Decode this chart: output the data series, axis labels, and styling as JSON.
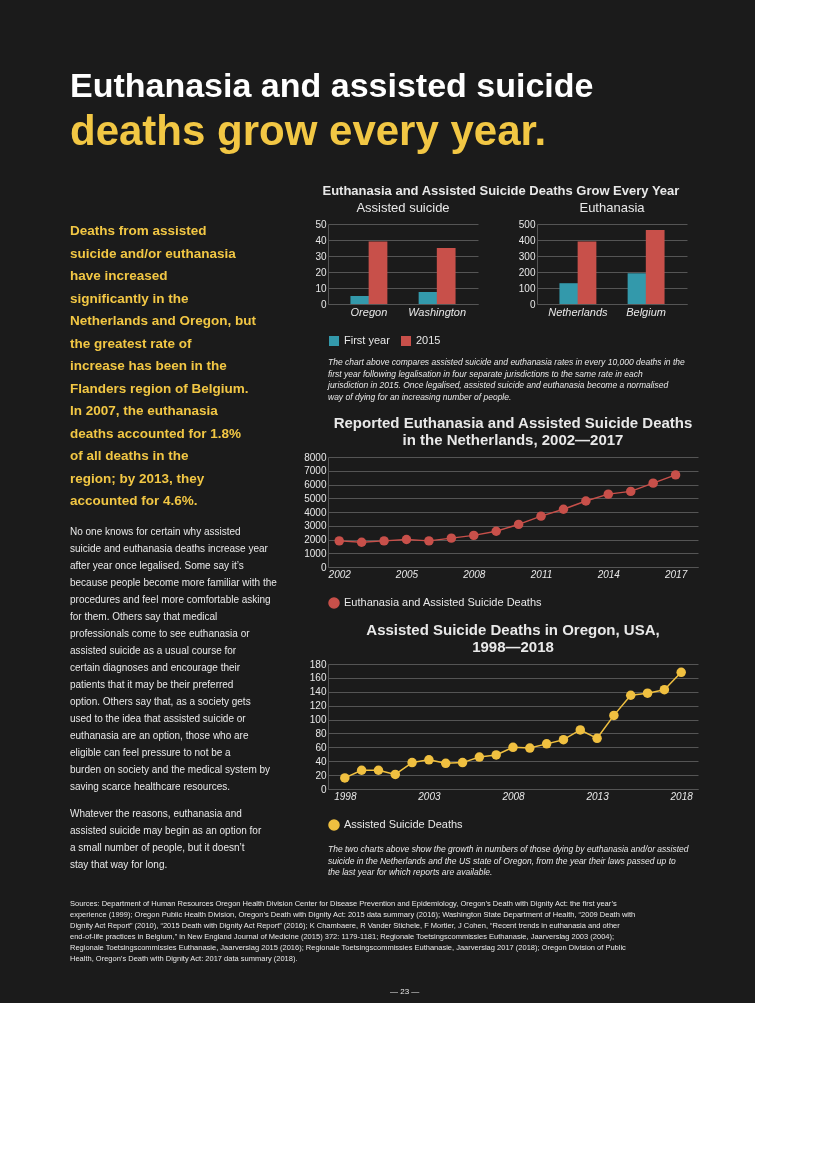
{
  "chart_data": [
    {
      "type": "other",
      "title": "Euthanasia and assisted suicide",
      "subtitle": "deaths grow every year.",
      "annotations": [
        "Deaths from assisted suicide and/or euthanasia have increased significantly in the Netherlands and Oregon, but the greatest rate of increase has been in the Flanders region of Belgium. In 2007, the euthanasia deaths accounted for 1.8% of all deaths in the region; by 2013, they accounted for 4.6%.",
        "No one knows for certain why assisted suicide and euthanasia deaths increase year after year once legalised. Some say it’s because people become more familiar with the procedures and feel more comfortable asking for them. Others say that medical professionals come to see euthanasia or assisted suicide as a usual course for certain diagnoses and encourage their patients that it may be their preferred option. Others say that, as a society gets used to the idea that assisted suicide or euthanasia are an option, those who are eligible can feel pressure to not be a burden on society and the medical system by saving scarce healthcare resources.",
        "Whatever the reasons, euthanasia and assisted suicide may begin as an option for a small number of people, but it doesn’t stay that way for long.",
        "Sources: Department of Human Resources Oregon Health Division Center for Disease Prevention and Epidemiology, Oregon’s Death with Dignity Act: the first year’s experience (1999); Oregon Public Health Division, Oregon’s Death with Dignity Act: 2015 data summary (2016); Washington State Department of Health, “2009 Death with Dignity Act Report” (2010), “2015 Death with Dignity Act Report” (2016); K Chambaere, R Vander Stichele, F Mortier, J Cohen, “Recent trends in euthanasia and other end-of-life practices in Belgium,” in New England Journal of Medicine (2015) 372: 1179-1181; Regionale Toetsingscommissies Euthanasie, Jaarverslag 2003 (2004); Regionale Toetsingscommissies Euthanasie, Jaarverslag 2015 (2016); Regionale Toetsingscommissies Euthanasie, Jaarverslag 2017 (2018); Oregon Division of Public Health, Oregon’s Death with Dignity Act: 2017 data summary (2018).",
        "— 23 —"
      ]
    },
    {
      "type": "bar",
      "title": "Euthanasia and Assisted Suicide Deaths Grow Every Year",
      "subtitle": "Assisted suicide",
      "categories": [
        "Oregon",
        "Washington"
      ],
      "series": [
        {
          "name": "First year",
          "color": "#3399ab",
          "values": [
            5,
            7.5
          ]
        },
        {
          "name": "2015",
          "color": "#c8504a",
          "values": [
            39,
            35
          ]
        }
      ],
      "ylim": [
        0,
        50
      ],
      "yticks": [
        0,
        10,
        20,
        30,
        40,
        50
      ],
      "grid": "y",
      "legend": "bottom"
    },
    {
      "type": "bar",
      "subtitle": "Euthanasia",
      "categories": [
        "Netherlands",
        "Belgium"
      ],
      "series": [
        {
          "name": "First year",
          "color": "#3399ab",
          "values": [
            130,
            192
          ]
        },
        {
          "name": "2015",
          "color": "#c8504a",
          "values": [
            390,
            462
          ]
        }
      ],
      "ylim": [
        0,
        500
      ],
      "yticks": [
        0,
        100,
        200,
        300,
        400,
        500
      ],
      "grid": "y",
      "legend": "bottom",
      "annotations": [
        "The chart above compares assisted suicide and euthanasia rates in every 10,000 deaths in the first year following legalisation in four separate jurisdictions to the same rate in each jurisdiction in 2015. Once legalised, assisted suicide and euthanasia become a normalised way of dying for an increasing number of people."
      ]
    },
    {
      "type": "line",
      "title": "Reported Euthanasia and Assisted Suicide Deaths in the Netherlands, 2002—2017",
      "x": [
        2002,
        2003,
        2004,
        2005,
        2006,
        2007,
        2008,
        2009,
        2010,
        2011,
        2012,
        2013,
        2014,
        2015,
        2016,
        2017
      ],
      "series": [
        {
          "name": "Euthanasia and Assisted Suicide Deaths",
          "color": "#c8504a",
          "values": [
            1900,
            1800,
            1900,
            2000,
            1900,
            2100,
            2300,
            2600,
            3100,
            3700,
            4200,
            4800,
            5300,
            5500,
            6100,
            6700
          ]
        }
      ],
      "xlim": [
        2001.5,
        2018
      ],
      "xticks": [
        2002,
        2005,
        2008,
        2011,
        2014,
        2017
      ],
      "ylim": [
        0,
        8000
      ],
      "yticks": [
        0,
        1000,
        2000,
        3000,
        4000,
        5000,
        6000,
        7000,
        8000
      ],
      "grid": "y",
      "legend": "bottom",
      "marker": "circle",
      "line_style": "solid"
    },
    {
      "type": "line",
      "title": "Assisted Suicide Deaths in Oregon, USA, 1998—2018",
      "x": [
        1998,
        1999,
        2000,
        2001,
        2002,
        2003,
        2004,
        2005,
        2006,
        2007,
        2008,
        2009,
        2010,
        2011,
        2012,
        2013,
        2014,
        2015,
        2016,
        2017,
        2018
      ],
      "series": [
        {
          "name": "Assisted Suicide Deaths",
          "color": "#f0c040",
          "values": [
            16,
            27,
            27,
            21,
            38,
            42,
            37,
            38,
            46,
            49,
            60,
            59,
            65,
            71,
            85,
            73,
            106,
            135,
            138,
            143,
            168
          ]
        }
      ],
      "xlim": [
        1997,
        2019
      ],
      "xticks": [
        1998,
        2003,
        2008,
        2013,
        2018
      ],
      "ylim": [
        0,
        180
      ],
      "yticks": [
        0,
        20,
        40,
        60,
        80,
        100,
        120,
        140,
        160,
        180
      ],
      "grid": "y",
      "legend": "bottom",
      "marker": "circle",
      "line_style": "solid",
      "annotations": [
        "The two charts above show the growth in numbers of those dying by euthanasia and/or assisted suicide in the Netherlands and the US state of Oregon, from the year their laws passed up to the last year for which reports are available."
      ]
    }
  ]
}
